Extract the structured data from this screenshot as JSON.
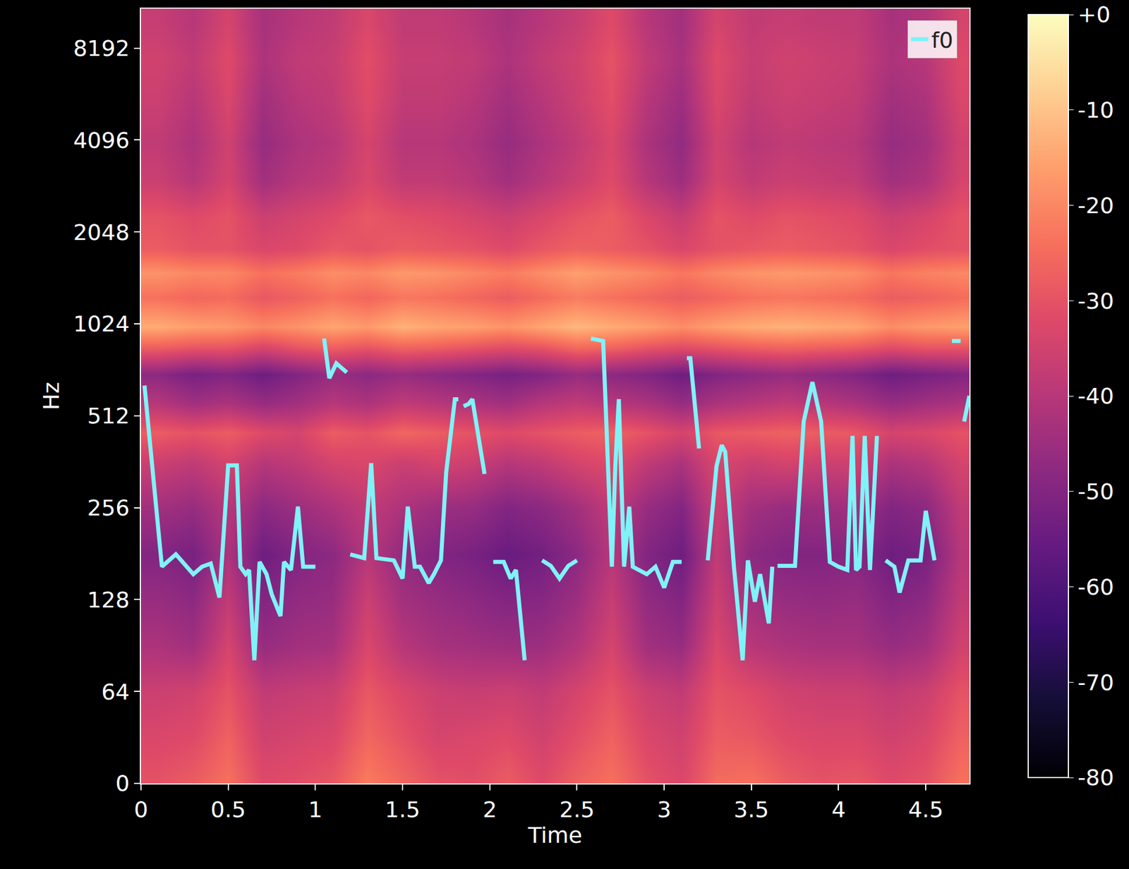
{
  "chart_data": {
    "type": "heatmap",
    "x_label": "Time",
    "y_label": "Hz",
    "log": "y",
    "grid": false,
    "legend": "upper right",
    "color": "magma",
    "xlim": [
      0,
      4.75
    ],
    "xticks": [
      0,
      0.5,
      1,
      1.5,
      2,
      2.5,
      3,
      3.5,
      4,
      4.5
    ],
    "ylim": [
      0,
      11025
    ],
    "yticks": [
      0,
      64,
      128,
      256,
      512,
      1024,
      2048,
      4096,
      8192
    ],
    "colorbar_range": [
      -80,
      0
    ],
    "colorbar_ticks": [
      {
        "value": 0,
        "label": "+0"
      },
      -10,
      -20,
      -30,
      -40,
      -50,
      -60,
      -70,
      -80
    ],
    "cells": {
      "x": [
        0.1,
        0.3,
        0.5,
        0.7,
        0.9,
        1.1,
        1.3,
        1.5,
        1.7,
        1.9,
        2.1,
        2.3,
        2.5,
        2.7,
        2.9,
        3.1,
        3.3,
        3.5,
        3.7,
        3.9,
        4.1,
        4.3,
        4.5,
        4.7
      ],
      "y": [
        0,
        32,
        64,
        90,
        128,
        180,
        256,
        360,
        450,
        560,
        700,
        850,
        1000,
        1250,
        1500,
        1800,
        2300,
        3000,
        4000,
        5500,
        7500,
        10000
      ],
      "z": [
        [
          -30,
          -28,
          -24,
          -32,
          -31,
          -29,
          -22,
          -26,
          -30,
          -31,
          -28,
          -32,
          -27,
          -24,
          -30,
          -33,
          -25,
          -24,
          -28,
          -30,
          -29,
          -32,
          -30,
          -24
        ],
        [
          -33,
          -32,
          -27,
          -35,
          -34,
          -33,
          -26,
          -30,
          -34,
          -33,
          -32,
          -35,
          -31,
          -27,
          -33,
          -35,
          -28,
          -29,
          -32,
          -33,
          -33,
          -35,
          -33,
          -27
        ],
        [
          -36,
          -35,
          -30,
          -38,
          -37,
          -36,
          -29,
          -33,
          -36,
          -37,
          -36,
          -38,
          -34,
          -30,
          -36,
          -38,
          -30,
          -32,
          -35,
          -36,
          -36,
          -38,
          -36,
          -30
        ],
        [
          -42,
          -44,
          -34,
          -46,
          -44,
          -43,
          -33,
          -40,
          -43,
          -44,
          -45,
          -45,
          -41,
          -34,
          -44,
          -46,
          -33,
          -40,
          -42,
          -43,
          -43,
          -46,
          -44,
          -35
        ],
        [
          -46,
          -48,
          -38,
          -50,
          -47,
          -46,
          -36,
          -44,
          -46,
          -48,
          -50,
          -49,
          -45,
          -37,
          -47,
          -50,
          -36,
          -44,
          -46,
          -47,
          -46,
          -50,
          -48,
          -38
        ],
        [
          -50,
          -52,
          -42,
          -54,
          -50,
          -48,
          -40,
          -47,
          -50,
          -52,
          -55,
          -53,
          -48,
          -40,
          -50,
          -54,
          -38,
          -48,
          -50,
          -50,
          -49,
          -54,
          -52,
          -40
        ],
        [
          -44,
          -46,
          -40,
          -48,
          -45,
          -42,
          -38,
          -42,
          -45,
          -46,
          -50,
          -48,
          -44,
          -38,
          -46,
          -50,
          -36,
          -44,
          -46,
          -45,
          -44,
          -50,
          -48,
          -38
        ],
        [
          -36,
          -38,
          -34,
          -40,
          -38,
          -34,
          -33,
          -36,
          -34,
          -36,
          -40,
          -38,
          -34,
          -32,
          -38,
          -42,
          -33,
          -36,
          -34,
          -36,
          -35,
          -42,
          -40,
          -34
        ],
        [
          -28,
          -30,
          -28,
          -32,
          -34,
          -28,
          -30,
          -26,
          -28,
          -30,
          -32,
          -30,
          -28,
          -27,
          -30,
          -34,
          -29,
          -28,
          -27,
          -28,
          -29,
          -34,
          -33,
          -30
        ],
        [
          -40,
          -44,
          -42,
          -46,
          -44,
          -40,
          -42,
          -38,
          -40,
          -42,
          -44,
          -40,
          -38,
          -40,
          -42,
          -46,
          -42,
          -40,
          -38,
          -40,
          -42,
          -46,
          -44,
          -42
        ],
        [
          -48,
          -52,
          -50,
          -54,
          -50,
          -46,
          -48,
          -46,
          -48,
          -50,
          -52,
          -50,
          -46,
          -48,
          -50,
          -54,
          -50,
          -48,
          -46,
          -48,
          -50,
          -54,
          -52,
          -50
        ],
        [
          -28,
          -30,
          -30,
          -34,
          -30,
          -28,
          -30,
          -27,
          -28,
          -30,
          -32,
          -30,
          -26,
          -27,
          -30,
          -32,
          -30,
          -28,
          -27,
          -28,
          -29,
          -32,
          -30,
          -30
        ],
        [
          -14,
          -16,
          -17,
          -20,
          -18,
          -15,
          -17,
          -13,
          -15,
          -16,
          -18,
          -15,
          -12,
          -14,
          -16,
          -19,
          -16,
          -14,
          -13,
          -14,
          -15,
          -19,
          -17,
          -16
        ],
        [
          -24,
          -26,
          -25,
          -29,
          -27,
          -24,
          -26,
          -23,
          -24,
          -26,
          -28,
          -25,
          -22,
          -24,
          -26,
          -28,
          -26,
          -24,
          -23,
          -24,
          -25,
          -28,
          -27,
          -25
        ],
        [
          -18,
          -20,
          -20,
          -24,
          -22,
          -19,
          -20,
          -17,
          -18,
          -20,
          -22,
          -19,
          -16,
          -18,
          -20,
          -23,
          -20,
          -18,
          -17,
          -18,
          -19,
          -23,
          -21,
          -20
        ],
        [
          -28,
          -30,
          -30,
          -33,
          -32,
          -29,
          -30,
          -28,
          -29,
          -30,
          -32,
          -29,
          -27,
          -28,
          -30,
          -33,
          -30,
          -29,
          -28,
          -29,
          -30,
          -33,
          -31,
          -30
        ],
        [
          -30,
          -32,
          -30,
          -36,
          -34,
          -32,
          -29,
          -31,
          -32,
          -34,
          -36,
          -33,
          -30,
          -28,
          -33,
          -37,
          -30,
          -32,
          -30,
          -31,
          -32,
          -36,
          -34,
          -30
        ],
        [
          -36,
          -40,
          -34,
          -44,
          -40,
          -38,
          -33,
          -38,
          -38,
          -40,
          -44,
          -40,
          -36,
          -32,
          -40,
          -45,
          -34,
          -38,
          -36,
          -37,
          -38,
          -44,
          -42,
          -34
        ],
        [
          -38,
          -42,
          -35,
          -46,
          -42,
          -40,
          -34,
          -40,
          -40,
          -42,
          -46,
          -42,
          -38,
          -33,
          -42,
          -47,
          -35,
          -40,
          -38,
          -39,
          -40,
          -46,
          -44,
          -35
        ],
        [
          -36,
          -40,
          -33,
          -44,
          -40,
          -38,
          -32,
          -38,
          -38,
          -40,
          -44,
          -40,
          -36,
          -31,
          -40,
          -45,
          -33,
          -38,
          -36,
          -37,
          -38,
          -44,
          -42,
          -33
        ],
        [
          -35,
          -38,
          -32,
          -42,
          -38,
          -37,
          -31,
          -37,
          -37,
          -38,
          -42,
          -38,
          -35,
          -30,
          -38,
          -43,
          -32,
          -37,
          -35,
          -36,
          -37,
          -42,
          -40,
          -32
        ],
        [
          -37,
          -40,
          -34,
          -43,
          -40,
          -38,
          -33,
          -38,
          -38,
          -40,
          -43,
          -40,
          -37,
          -32,
          -40,
          -44,
          -34,
          -38,
          -37,
          -38,
          -38,
          -43,
          -41,
          -34
        ]
      ]
    },
    "series": [
      {
        "name": "f0",
        "type": "line",
        "color": "#7ff3f7",
        "x": [
          0.02,
          0.12,
          0.2,
          0.3,
          0.35,
          0.4,
          0.45,
          0.5,
          0.55,
          0.57,
          0.6,
          0.62,
          0.65,
          0.68,
          0.72,
          0.75,
          0.8,
          0.82,
          0.86,
          0.9,
          0.93,
          1.0,
          1.02,
          1.05,
          1.08,
          1.12,
          1.18,
          1.19,
          1.2,
          1.28,
          1.32,
          1.35,
          1.45,
          1.5,
          1.53,
          1.57,
          1.6,
          1.65,
          1.68,
          1.72,
          1.75,
          1.8,
          1.82,
          1.83,
          1.85,
          1.88,
          1.9,
          1.95,
          1.97,
          2.0,
          2.02,
          2.08,
          2.12,
          2.15,
          2.2,
          2.25,
          2.3,
          2.35,
          2.4,
          2.45,
          2.5,
          2.55,
          2.58,
          2.65,
          2.67,
          2.7,
          2.72,
          2.74,
          2.77,
          2.8,
          2.82,
          2.9,
          2.95,
          3.0,
          3.05,
          3.1,
          3.11,
          3.13,
          3.15,
          3.2,
          3.22,
          3.25,
          3.3,
          3.33,
          3.35,
          3.4,
          3.45,
          3.48,
          3.52,
          3.55,
          3.6,
          3.62,
          3.63,
          3.65,
          3.75,
          3.8,
          3.85,
          3.9,
          3.95,
          4.0,
          4.05,
          4.08,
          4.1,
          4.12,
          4.15,
          4.18,
          4.2,
          4.22,
          4.24,
          4.27,
          4.32,
          4.35,
          4.4,
          4.47,
          4.5,
          4.55,
          4.6,
          4.65,
          4.7,
          4.71,
          4.72,
          4.75
        ],
        "values": [
          643,
          164,
          180,
          155,
          164,
          168,
          130,
          352,
          352,
          164,
          155,
          160,
          81,
          170,
          155,
          133,
          113,
          170,
          160,
          258,
          164,
          164,
          null,
          917,
          680,
          760,
          710,
          null,
          180,
          175,
          358,
          175,
          172,
          150,
          258,
          164,
          164,
          145,
          155,
          172,
          334,
          580,
          580,
          null,
          550,
          560,
          580,
          375,
          330,
          null,
          170,
          170,
          150,
          160,
          81,
          null,
          172,
          165,
          150,
          165,
          172,
          null,
          917,
          900,
          460,
          164,
          352,
          580,
          164,
          258,
          164,
          155,
          164,
          140,
          170,
          170,
          null,
          790,
          790,
          400,
          null,
          172,
          350,
          410,
          390,
          164,
          81,
          172,
          126,
          155,
          107,
          164,
          null,
          165,
          165,
          490,
          660,
          490,
          170,
          164,
          160,
          440,
          160,
          164,
          440,
          160,
          270,
          440,
          null,
          172,
          164,
          135,
          172,
          172,
          250,
          172,
          null,
          900,
          900,
          null,
          490,
          595
        ]
      }
    ]
  }
}
